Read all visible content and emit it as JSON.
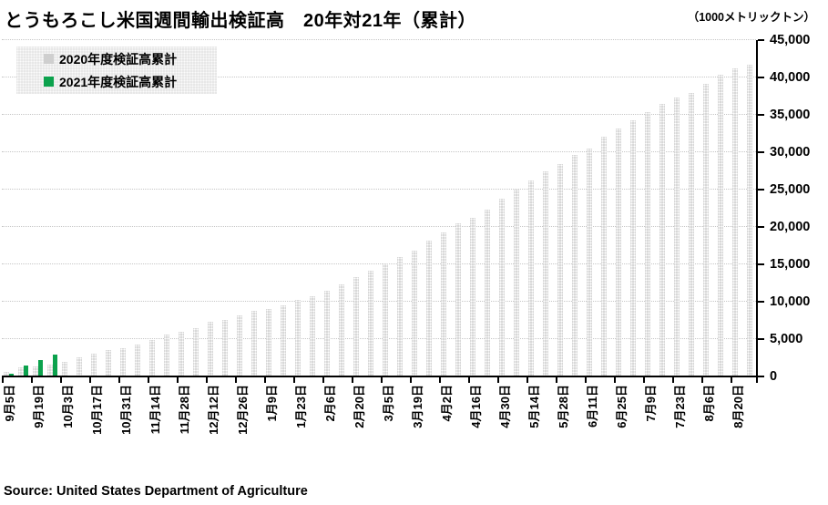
{
  "title": "とうもろこし米国週間輸出検証高　20年対21年（累計）",
  "unit_label": "（1000メトリックトン）",
  "source_note": "Source: United States Department of Agriculture",
  "chart_data": {
    "type": "bar",
    "title": "とうもろこし米国週間輸出検証高　20年対21年（累計）",
    "ylabel": "（1000メトリックトン）",
    "xlabel": "",
    "ylim": [
      0,
      45000
    ],
    "ytick_step": 5000,
    "ytick_labels": [
      "0",
      "5,000",
      "10,000",
      "15,000",
      "20,000",
      "25,000",
      "30,000",
      "35,000",
      "40,000",
      "45,000"
    ],
    "x_tick_labels": [
      "9月5日",
      "9月19日",
      "10月3日",
      "10月17日",
      "10月31日",
      "11月14日",
      "11月28日",
      "12月12日",
      "12月26日",
      "1月9日",
      "1月23日",
      "2月6日",
      "2月20日",
      "3月5日",
      "3月19日",
      "4月2日",
      "4月16日",
      "4月30日",
      "5月14日",
      "5月28日",
      "6月11日",
      "6月25日",
      "7月9日",
      "7月23日",
      "8月6日",
      "8月20日"
    ],
    "bars_per_tick": 2,
    "grid": true,
    "legend_position": "top-left",
    "series": [
      {
        "name": "2020年度検証高累計",
        "color": "#cfcfcf",
        "values": [
          450,
          1100,
          1250,
          1450,
          1800,
          2450,
          2900,
          3400,
          3650,
          4150,
          4750,
          5500,
          5850,
          6350,
          7200,
          7450,
          8000,
          8600,
          8950,
          9400,
          10100,
          10600,
          11400,
          12200,
          13150,
          14000,
          14950,
          15800,
          16700,
          18000,
          19200,
          20400,
          21150,
          22250,
          23600,
          24900,
          26150,
          27350,
          28300,
          29550,
          30400,
          31900,
          33100,
          34100,
          35200,
          36350,
          37150,
          37800,
          39050,
          40300,
          41150,
          41550
        ]
      },
      {
        "name": "2021年度検証高累計",
        "color": "#0ca24d",
        "values": [
          300,
          1300,
          2100,
          2750
        ]
      }
    ]
  }
}
